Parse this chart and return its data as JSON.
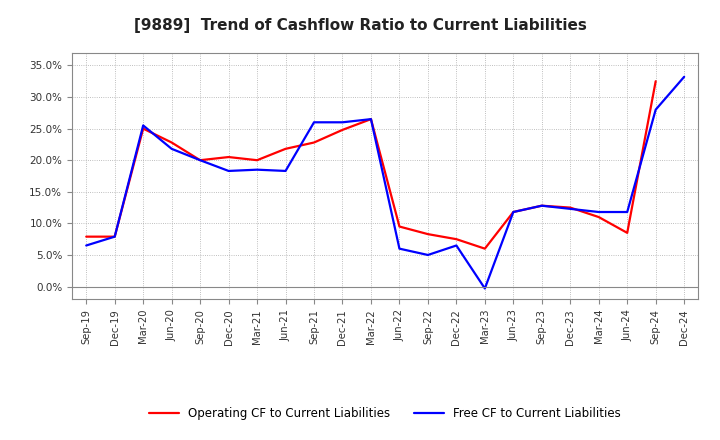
{
  "title": "[9889]  Trend of Cashflow Ratio to Current Liabilities",
  "x_labels": [
    "Sep-19",
    "Dec-19",
    "Mar-20",
    "Jun-20",
    "Sep-20",
    "Dec-20",
    "Mar-21",
    "Jun-21",
    "Sep-21",
    "Dec-21",
    "Mar-22",
    "Jun-22",
    "Sep-22",
    "Dec-22",
    "Mar-23",
    "Jun-23",
    "Sep-23",
    "Dec-23",
    "Mar-24",
    "Jun-24",
    "Sep-24",
    "Dec-24"
  ],
  "operating_cf": [
    0.079,
    0.079,
    0.25,
    0.228,
    0.2,
    0.205,
    0.2,
    0.218,
    0.228,
    0.248,
    0.265,
    0.095,
    0.083,
    0.075,
    0.06,
    0.118,
    0.128,
    0.125,
    0.11,
    0.085,
    0.325,
    null
  ],
  "free_cf": [
    0.065,
    0.079,
    0.255,
    0.218,
    0.2,
    0.183,
    0.185,
    0.183,
    0.26,
    0.26,
    0.265,
    0.06,
    0.05,
    0.065,
    -0.003,
    0.118,
    0.128,
    0.123,
    0.118,
    0.118,
    0.28,
    0.332
  ],
  "ylim": [
    -0.02,
    0.37
  ],
  "yticks": [
    0.0,
    0.05,
    0.1,
    0.15,
    0.2,
    0.25,
    0.3,
    0.35
  ],
  "operating_color": "#FF0000",
  "free_color": "#0000FF",
  "background_color": "#FFFFFF",
  "plot_bg_color": "#FFFFFF",
  "grid_color": "#AAAAAA",
  "legend_operating": "Operating CF to Current Liabilities",
  "legend_free": "Free CF to Current Liabilities",
  "title_fontsize": 11,
  "line_width": 1.6
}
